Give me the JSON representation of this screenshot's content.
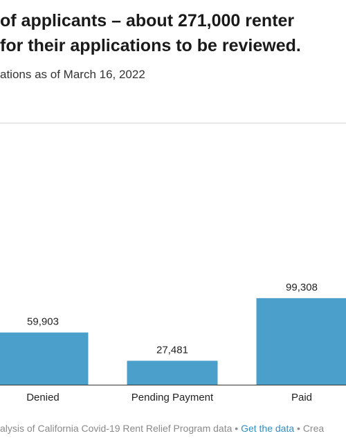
{
  "heading": {
    "line1": "of applicants – about 271,000 renter",
    "line2": "for their applications to be reviewed."
  },
  "subtitle": "ations as of March 16, 2022",
  "footer": {
    "source_text": "alysis of California Covid-19 Rent Relief Program data",
    "separator1": " • ",
    "link_text": "Get the data",
    "separator2": " • ",
    "trailing": "Crea"
  },
  "colors": {
    "bar": "#4a9fcb",
    "axis": "#333333",
    "gridline": "#d0d0d0"
  },
  "chart_data": {
    "type": "bar",
    "categories": [
      "Denied",
      "Pending Payment",
      "Paid"
    ],
    "values": [
      59903,
      27481,
      99308
    ],
    "value_labels": [
      "59,903",
      "27,481",
      "99,308"
    ],
    "title": "",
    "xlabel": "",
    "ylabel": "",
    "ylim": [
      0,
      300000
    ],
    "grid": true
  }
}
